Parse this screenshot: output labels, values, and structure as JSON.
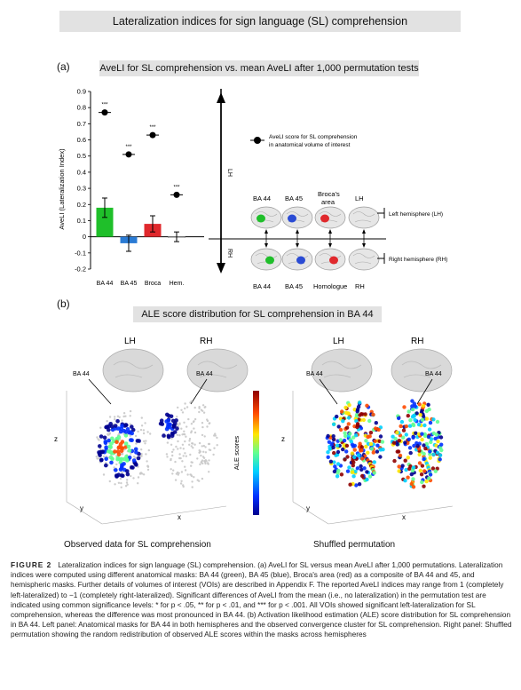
{
  "header": {
    "title": "Lateralization indices for sign language (SL) comprehension"
  },
  "panel_a": {
    "letter": "(a)",
    "title": "AveLI for SL comprehension vs. mean AveLI after 1,000 permutation tests",
    "legend": {
      "line1": "AveLI score for SL comprehension",
      "line2": "in anatomical volume of interest"
    },
    "lh_axis": "LH",
    "rh_axis": "RH",
    "top_labels": [
      "BA 44",
      "BA 45",
      "Broca's",
      "area",
      "LH"
    ],
    "bottom_labels": [
      "BA 44",
      "BA 45",
      "Homologue",
      "RH"
    ],
    "hemi_lh": "Left hemisphere (LH)",
    "hemi_rh": "Right hemisphere (RH)"
  },
  "chart_data": {
    "type": "bar",
    "categories": [
      "BA 44",
      "BA 45",
      "Broca",
      "Hem."
    ],
    "values": [
      0.18,
      -0.04,
      0.08,
      0.0
    ],
    "errors": [
      0.06,
      0.05,
      0.05,
      0.03
    ],
    "point_values": [
      0.77,
      0.51,
      0.63,
      0.26
    ],
    "significance": [
      "***",
      "***",
      "***",
      "***"
    ],
    "bar_colors": [
      "#1fbf2a",
      "#2a7bd4",
      "#e0282c",
      "#ffffff"
    ],
    "ylabel": "AveLI (Lateralization Index)",
    "ylim": [
      -0.2,
      0.9
    ],
    "yticks": [
      "0.9",
      "0.8",
      "0.7",
      "0.6",
      "0.5",
      "0.4",
      "0.3",
      "0.2",
      "0.1",
      "0",
      "-0.1",
      "-0.2"
    ]
  },
  "panel_b": {
    "letter": "(b)",
    "title": "ALE score distribution for SL comprehension in BA 44",
    "lh": "LH",
    "rh": "RH",
    "ba44": "BA 44",
    "colorbar_label": "ALE scores",
    "axis_z": "z",
    "axis_y": "y",
    "axis_x": "x",
    "left_caption": "Observed data for SL comprehension",
    "right_caption": "Shuffled permutation"
  },
  "caption": {
    "label": "FIGURE 2",
    "text": "Lateralization indices for sign language (SL) comprehension. (a) AveLI for SL versus mean AveLI after 1,000 permutations. Lateralization indices were computed using different anatomical masks: BA 44 (green), BA 45 (blue), Broca's area (red) as a composite of BA 44 and 45, and hemispheric masks. Further details of volumes of interest (VOIs) are described in Appendix F. The reported AveLI indices may range from 1 (completely left-lateralized) to −1 (completely right-lateralized). Significant differences of AveLI from the mean (i.e., no lateralization) in the permutation test are indicated using common significance levels: * for p < .05, ** for p < .01, and *** for p < .001. All VOIs showed significant left-lateralization for SL comprehension, whereas the difference was most pronounced in BA 44. (b) Activation likelihood estimation (ALE) score distribution for SL comprehension in BA 44. Left panel: Anatomical masks for BA 44 in both hemispheres and the observed convergence cluster for SL comprehension. Right panel: Shuffled permutation showing the random redistribution of observed ALE scores within the masks across hemispheres"
  }
}
